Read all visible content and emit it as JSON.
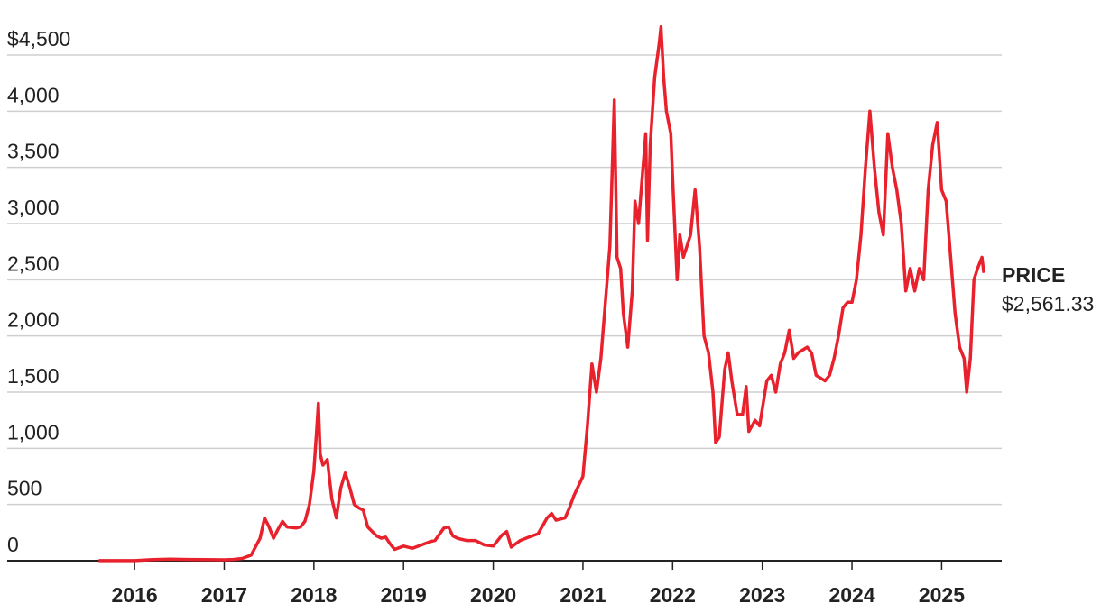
{
  "chart_data": {
    "type": "line",
    "annotation": {
      "title": "PRICE",
      "text": "$2,561.33"
    },
    "xlim": [
      2014.58,
      2025.67
    ],
    "xticks": [
      2016,
      2017,
      2018,
      2019,
      2020,
      2021,
      2022,
      2023,
      2024,
      2025
    ],
    "ylim": [
      0,
      4500
    ],
    "yticks": [
      0,
      500,
      {
        "value": 1000,
        "label": "1,000"
      },
      {
        "value": 1500,
        "label": "1,500"
      },
      {
        "value": 2000,
        "label": "2,000"
      },
      {
        "value": 2500,
        "label": "2,500"
      },
      {
        "value": 3000,
        "label": "3,000"
      },
      {
        "value": 3500,
        "label": "3,500"
      },
      {
        "value": 4000,
        "label": "4,000"
      },
      {
        "value": 4500,
        "label": "$4,500"
      }
    ],
    "grid": true,
    "series": [
      {
        "color": "#e8212c",
        "x": [
          2015.6,
          2015.8,
          2016.0,
          2016.2,
          2016.4,
          2016.6,
          2016.8,
          2017.0,
          2017.1,
          2017.2,
          2017.3,
          2017.4,
          2017.45,
          2017.5,
          2017.55,
          2017.6,
          2017.65,
          2017.7,
          2017.8,
          2017.85,
          2017.9,
          2017.95,
          2018.0,
          2018.03,
          2018.05,
          2018.07,
          2018.1,
          2018.15,
          2018.2,
          2018.25,
          2018.3,
          2018.35,
          2018.4,
          2018.45,
          2018.5,
          2018.55,
          2018.6,
          2018.7,
          2018.75,
          2018.8,
          2018.85,
          2018.9,
          2019.0,
          2019.1,
          2019.2,
          2019.3,
          2019.35,
          2019.45,
          2019.5,
          2019.55,
          2019.6,
          2019.7,
          2019.8,
          2019.9,
          2020.0,
          2020.1,
          2020.15,
          2020.2,
          2020.3,
          2020.4,
          2020.5,
          2020.6,
          2020.65,
          2020.7,
          2020.8,
          2020.85,
          2020.9,
          2021.0,
          2021.05,
          2021.1,
          2021.15,
          2021.2,
          2021.25,
          2021.3,
          2021.35,
          2021.38,
          2021.42,
          2021.45,
          2021.5,
          2021.55,
          2021.58,
          2021.62,
          2021.65,
          2021.7,
          2021.72,
          2021.75,
          2021.8,
          2021.85,
          2021.87,
          2021.9,
          2021.93,
          2021.98,
          2022.0,
          2022.05,
          2022.08,
          2022.12,
          2022.2,
          2022.25,
          2022.3,
          2022.35,
          2022.4,
          2022.45,
          2022.48,
          2022.52,
          2022.58,
          2022.62,
          2022.66,
          2022.72,
          2022.78,
          2022.82,
          2022.85,
          2022.92,
          2022.97,
          2023.05,
          2023.1,
          2023.15,
          2023.2,
          2023.25,
          2023.3,
          2023.35,
          2023.4,
          2023.5,
          2023.55,
          2023.6,
          2023.7,
          2023.75,
          2023.8,
          2023.85,
          2023.9,
          2023.95,
          2024.0,
          2024.05,
          2024.1,
          2024.15,
          2024.2,
          2024.25,
          2024.3,
          2024.35,
          2024.4,
          2024.45,
          2024.5,
          2024.55,
          2024.6,
          2024.65,
          2024.7,
          2024.75,
          2024.8,
          2024.85,
          2024.9,
          2024.95,
          2025.0,
          2025.05,
          2025.1,
          2025.15,
          2025.2,
          2025.25,
          2025.28,
          2025.32,
          2025.36,
          2025.4,
          2025.45,
          2025.47
        ],
        "values": [
          1,
          1,
          1,
          10,
          14,
          11,
          10,
          8,
          11,
          20,
          50,
          200,
          380,
          300,
          200,
          280,
          350,
          300,
          290,
          300,
          350,
          500,
          800,
          1150,
          1400,
          950,
          850,
          900,
          550,
          380,
          650,
          780,
          650,
          500,
          470,
          450,
          300,
          220,
          200,
          210,
          150,
          100,
          130,
          110,
          140,
          170,
          180,
          290,
          300,
          220,
          200,
          180,
          180,
          140,
          130,
          230,
          260,
          120,
          180,
          210,
          240,
          380,
          420,
          360,
          380,
          470,
          580,
          750,
          1200,
          1750,
          1500,
          1800,
          2300,
          2800,
          4100,
          2700,
          2600,
          2200,
          1900,
          2400,
          3200,
          3000,
          3300,
          3800,
          2850,
          3700,
          4300,
          4600,
          4750,
          4300,
          4000,
          3800,
          3400,
          2500,
          2900,
          2700,
          2900,
          3300,
          2800,
          2000,
          1850,
          1500,
          1050,
          1100,
          1700,
          1850,
          1600,
          1300,
          1300,
          1550,
          1150,
          1250,
          1200,
          1600,
          1650,
          1500,
          1750,
          1850,
          2050,
          1800,
          1850,
          1900,
          1850,
          1650,
          1600,
          1650,
          1800,
          2000,
          2250,
          2300,
          2300,
          2500,
          2900,
          3500,
          4000,
          3500,
          3100,
          2900,
          3800,
          3500,
          3300,
          3000,
          2400,
          2600,
          2400,
          2600,
          2500,
          3300,
          3700,
          3900,
          3300,
          3200,
          2700,
          2200,
          1900,
          1800,
          1500,
          1800,
          2500,
          2600,
          2700,
          2561.33
        ]
      }
    ]
  }
}
